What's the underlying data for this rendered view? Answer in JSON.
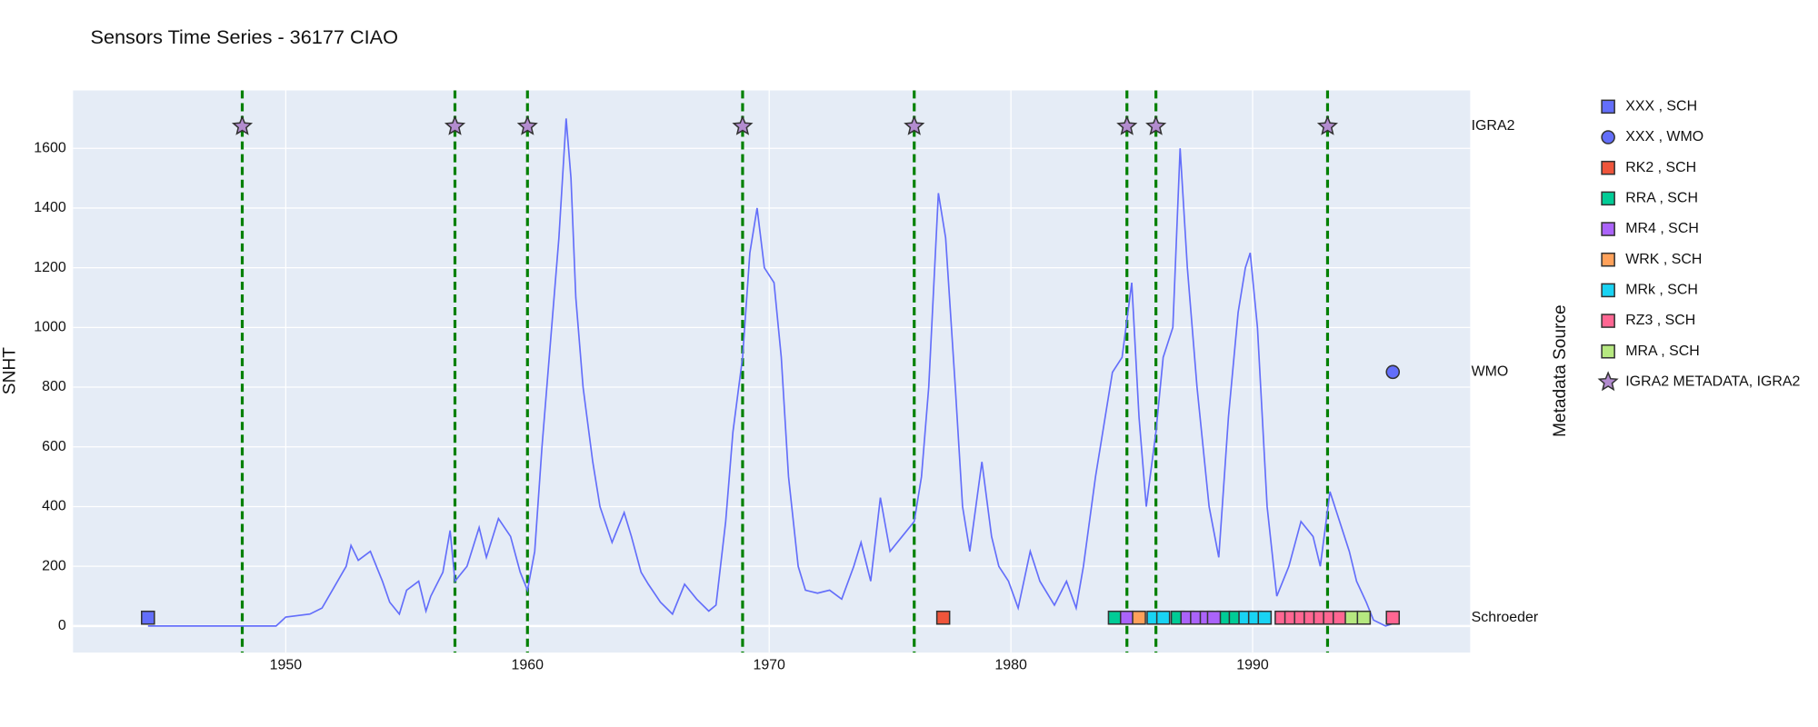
{
  "chart_data": {
    "type": "line",
    "title": "Sensors Time Series - 36177 CIAO",
    "ylabel": "SNHT",
    "y2label": "Metadata Source",
    "xlim": [
      1941.2,
      1999.0
    ],
    "xticks": [
      1950,
      1960,
      1970,
      1980,
      1990
    ],
    "ylim": [
      -89,
      1794
    ],
    "yticks": [
      0,
      200,
      400,
      600,
      800,
      1000,
      1200,
      1400,
      1600
    ],
    "y2categories": [
      "Schroeder",
      "WMO",
      "IGRA2"
    ],
    "y2lim": [
      -0.142,
      2.146
    ],
    "grid": true,
    "legend": "right",
    "vline_color": "#008000",
    "series": [
      {
        "color": "#636efa",
        "x": [
          1944.3,
          1949.6,
          1950,
          1951,
          1951.5,
          1952,
          1952.5,
          1952.7,
          1953,
          1953.5,
          1954,
          1954.3,
          1954.7,
          1955,
          1955.5,
          1955.8,
          1956,
          1956.5,
          1956.8,
          1957,
          1957.5,
          1958,
          1958.3,
          1958.8,
          1959.3,
          1959.7,
          1960,
          1960.3,
          1960.6,
          1961,
          1961.3,
          1961.6,
          1961.8,
          1962,
          1962.3,
          1962.7,
          1963,
          1963.5,
          1964,
          1964.3,
          1964.7,
          1965,
          1965.5,
          1966,
          1966.5,
          1967,
          1967.5,
          1967.8,
          1968.2,
          1968.5,
          1968.9,
          1969.2,
          1969.5,
          1969.8,
          1970.2,
          1970.5,
          1970.8,
          1971.2,
          1971.5,
          1972,
          1972.5,
          1973,
          1973.5,
          1973.8,
          1974.2,
          1974.6,
          1975,
          1975.5,
          1976,
          1976.3,
          1976.6,
          1977,
          1977.3,
          1977.7,
          1978,
          1978.3,
          1978.8,
          1979.2,
          1979.5,
          1979.9,
          1980.3,
          1980.8,
          1981.2,
          1981.8,
          1982.3,
          1982.7,
          1983,
          1983.5,
          1983.8,
          1984.2,
          1984.6,
          1985,
          1985.3,
          1985.6,
          1986,
          1986.3,
          1986.7,
          1987,
          1987.3,
          1987.7,
          1988.2,
          1988.6,
          1989,
          1989.4,
          1989.7,
          1989.9,
          1990.2,
          1990.6,
          1991,
          1991.5,
          1992,
          1992.5,
          1992.8,
          1993.2,
          1993.6,
          1994,
          1994.3,
          1994.7,
          1995,
          1995.5,
          1995.9
        ],
        "values": [
          0,
          0,
          30,
          40,
          60,
          130,
          200,
          270,
          220,
          250,
          150,
          80,
          40,
          120,
          150,
          50,
          100,
          180,
          320,
          150,
          200,
          330,
          230,
          360,
          300,
          180,
          120,
          250,
          600,
          1000,
          1300,
          1700,
          1500,
          1100,
          800,
          550,
          400,
          280,
          380,
          300,
          180,
          140,
          80,
          40,
          140,
          90,
          50,
          70,
          350,
          650,
          900,
          1250,
          1400,
          1200,
          1150,
          900,
          500,
          200,
          120,
          110,
          120,
          90,
          200,
          280,
          150,
          430,
          250,
          300,
          350,
          500,
          800,
          1450,
          1300,
          800,
          400,
          250,
          550,
          300,
          200,
          150,
          60,
          250,
          150,
          70,
          150,
          60,
          200,
          500,
          650,
          850,
          900,
          1150,
          700,
          400,
          650,
          900,
          1000,
          1600,
          1200,
          800,
          400,
          230,
          700,
          1050,
          1200,
          1250,
          1000,
          400,
          100,
          200,
          350,
          300,
          200,
          450,
          350,
          250,
          150,
          80,
          20,
          0,
          10
        ]
      },
      {
        "name": "XXX , SCH",
        "color": "#636efa",
        "marker": "square",
        "axis": "y2",
        "x": [
          1944.3
        ],
        "values": [
          "Schroeder"
        ]
      },
      {
        "name": "XXX , WMO",
        "color": "#636efa",
        "marker": "circle",
        "axis": "y2",
        "x": [
          1995.8
        ],
        "values": [
          "WMO"
        ]
      },
      {
        "name": "RK2 , SCH",
        "color": "#EF553B",
        "marker": "square",
        "axis": "y2",
        "x": [
          1977.2
        ],
        "values": [
          "Schroeder"
        ]
      },
      {
        "name": "RRA , SCH",
        "color": "#00cc96",
        "marker": "square",
        "axis": "y2",
        "x": [
          1984.3,
          1986.9,
          1988.8,
          1989.3
        ],
        "values": [
          "Schroeder",
          "Schroeder",
          "Schroeder",
          "Schroeder"
        ]
      },
      {
        "name": "MR4 , SCH",
        "color": "#ab63fa",
        "marker": "square",
        "axis": "y2",
        "x": [
          1984.8,
          1987.3,
          1987.7,
          1988.1,
          1988.4
        ],
        "values": [
          "Schroeder",
          "Schroeder",
          "Schroeder",
          "Schroeder",
          "Schroeder"
        ]
      },
      {
        "name": "WRK , SCH",
        "color": "#FFA15A",
        "marker": "square",
        "axis": "y2",
        "x": [
          1985.3
        ],
        "values": [
          "Schroeder"
        ]
      },
      {
        "name": "MRk , SCH",
        "color": "#19d3f3",
        "marker": "square",
        "axis": "y2",
        "x": [
          1985.9,
          1986.3,
          1989.7,
          1990.1,
          1990.5
        ],
        "values": [
          "Schroeder",
          "Schroeder",
          "Schroeder",
          "Schroeder",
          "Schroeder"
        ]
      },
      {
        "name": "RZ3 , SCH",
        "color": "#FF6692",
        "marker": "square",
        "axis": "y2",
        "x": [
          1991.2,
          1991.6,
          1992.0,
          1992.4,
          1992.8,
          1993.2,
          1993.6,
          1995.8
        ],
        "values": [
          "Schroeder",
          "Schroeder",
          "Schroeder",
          "Schroeder",
          "Schroeder",
          "Schroeder",
          "Schroeder",
          "Schroeder"
        ]
      },
      {
        "name": "MRA , SCH",
        "color": "#B6E880",
        "marker": "square",
        "axis": "y2",
        "x": [
          1994.1,
          1994.6
        ],
        "values": [
          "Schroeder",
          "Schroeder"
        ]
      },
      {
        "name": "IGRA2 METADATA, IGRA2",
        "color": "#b38ccf",
        "marker": "star",
        "axis": "y2",
        "vlines": true,
        "x": [
          1948.2,
          1957.0,
          1960.0,
          1968.9,
          1976.0,
          1984.8,
          1986.0,
          1993.1
        ],
        "values": [
          "IGRA2",
          "IGRA2",
          "IGRA2",
          "IGRA2",
          "IGRA2",
          "IGRA2",
          "IGRA2",
          "IGRA2"
        ]
      }
    ]
  }
}
